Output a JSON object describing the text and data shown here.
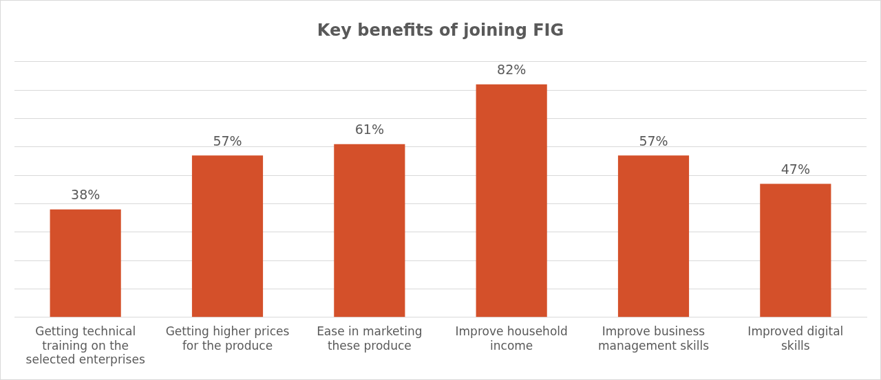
{
  "chart_data": {
    "type": "bar",
    "title": "Key benefits of joining FIG",
    "categories": [
      "Getting technical training on the selected enterprises",
      "Getting higher prices for the produce",
      "Ease in marketing these produce",
      "Improve household income",
      "Improve business management skills",
      "Improved digital skills"
    ],
    "values": [
      38,
      57,
      61,
      82,
      57,
      47
    ],
    "value_labels": [
      "38%",
      "57%",
      "61%",
      "82%",
      "57%",
      "47%"
    ],
    "color": "#d4502a",
    "ylim": [
      0,
      90
    ],
    "yticks": [
      0,
      10,
      20,
      30,
      40,
      50,
      60,
      70,
      80,
      90
    ],
    "grid": "y",
    "tick_labels": "x",
    "legend": false
  }
}
